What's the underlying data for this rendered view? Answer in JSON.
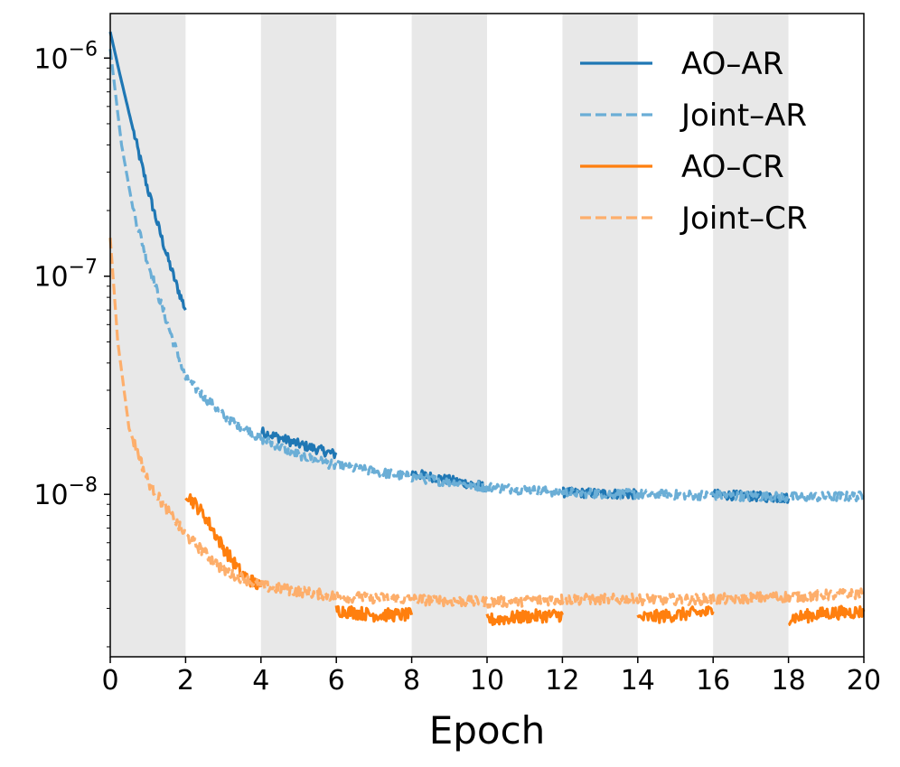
{
  "chart_data": {
    "type": "line",
    "title": "",
    "xlabel": "Epoch",
    "ylabel": "",
    "yscale": "log",
    "xlim": [
      0,
      20
    ],
    "ylim": [
      1.8e-09,
      1.6e-06
    ],
    "x_ticks": [
      0,
      2,
      4,
      6,
      8,
      10,
      12,
      14,
      16,
      18,
      20
    ],
    "x_tick_labels": [
      "0",
      "2",
      "4",
      "6",
      "8",
      "10",
      "12",
      "14",
      "16",
      "18",
      "20"
    ],
    "y_ticks": [
      {
        "value": 1e-06,
        "base": "10",
        "exponent": "−6"
      },
      {
        "value": 1e-07,
        "base": "10",
        "exponent": "−7"
      },
      {
        "value": 1e-08,
        "base": "10",
        "exponent": "−8"
      }
    ],
    "shaded_x_intervals": [
      [
        0,
        2
      ],
      [
        4,
        6
      ],
      [
        8,
        10
      ],
      [
        12,
        14
      ],
      [
        16,
        18
      ]
    ],
    "shade_color": "#e8e8e8",
    "legend_position": "top-right",
    "series": [
      {
        "name": "AO–AR",
        "color": "#1f77b4",
        "style": "solid",
        "noise": 0.022,
        "segments": [
          [
            [
              0,
              1.32e-06
            ],
            [
              0.25,
              8.5e-07
            ],
            [
              0.5,
              5.6e-07
            ],
            [
              0.75,
              3.7e-07
            ],
            [
              1.0,
              2.5e-07
            ],
            [
              1.25,
              1.75e-07
            ],
            [
              1.5,
              1.25e-07
            ],
            [
              1.75,
              9.2e-08
            ],
            [
              2.0,
              7e-08
            ]
          ],
          [
            [
              4,
              1.94e-08
            ],
            [
              5,
              1.7e-08
            ],
            [
              6,
              1.52e-08
            ]
          ],
          [
            [
              8,
              1.25e-08
            ],
            [
              10,
              1.08e-08
            ]
          ],
          [
            [
              12,
              1.02e-08
            ],
            [
              14,
              1e-08
            ]
          ],
          [
            [
              16,
              1e-08
            ],
            [
              18,
              9.6e-09
            ]
          ]
        ]
      },
      {
        "name": "Joint–AR",
        "color": "#6baed6",
        "style": "dashed",
        "noise": 0.022,
        "segments": [
          [
            [
              0,
              1.1e-06
            ],
            [
              0.3,
              4e-07
            ],
            [
              0.6,
              2.05e-07
            ],
            [
              1.0,
              1.15e-07
            ],
            [
              1.5,
              6.2e-08
            ],
            [
              2.0,
              3.4e-08
            ],
            [
              3.0,
              2.3e-08
            ],
            [
              4.0,
              1.8e-08
            ],
            [
              5.0,
              1.52e-08
            ],
            [
              6.0,
              1.35e-08
            ],
            [
              8.0,
              1.2e-08
            ],
            [
              10.0,
              1.08e-08
            ],
            [
              12.0,
              1.02e-08
            ],
            [
              14.0,
              1e-08
            ],
            [
              16.0,
              9.9e-09
            ],
            [
              18.0,
              9.7e-09
            ],
            [
              20.0,
              9.8e-09
            ]
          ]
        ]
      },
      {
        "name": "AO–CR",
        "color": "#ff7f0e",
        "style": "solid",
        "noise": 0.03,
        "segments": [
          [
            [
              2.0,
              1.02e-08
            ],
            [
              2.5,
              8e-09
            ],
            [
              3.0,
              5.7e-09
            ],
            [
              3.5,
              4.3e-09
            ],
            [
              4.0,
              3.75e-09
            ]
          ],
          [
            [
              6,
              2.95e-09
            ],
            [
              7,
              2.8e-09
            ],
            [
              8,
              2.8e-09
            ]
          ],
          [
            [
              10,
              2.65e-09
            ],
            [
              11,
              2.75e-09
            ],
            [
              12,
              2.8e-09
            ]
          ],
          [
            [
              14,
              2.7e-09
            ],
            [
              15,
              2.8e-09
            ],
            [
              16,
              2.9e-09
            ]
          ],
          [
            [
              18,
              2.7e-09
            ],
            [
              19,
              2.85e-09
            ],
            [
              20,
              2.9e-09
            ]
          ]
        ]
      },
      {
        "name": "Joint–CR",
        "color": "#fdae6b",
        "style": "dashed",
        "noise": 0.025,
        "segments": [
          [
            [
              0,
              1.5e-07
            ],
            [
              0.2,
              5e-08
            ],
            [
              0.5,
              2e-08
            ],
            [
              1.0,
              1.15e-08
            ],
            [
              1.5,
              8.5e-09
            ],
            [
              2.0,
              6.5e-09
            ],
            [
              3.0,
              4.5e-09
            ],
            [
              4.0,
              3.8e-09
            ],
            [
              6.0,
              3.4e-09
            ],
            [
              8.0,
              3.3e-09
            ],
            [
              10.0,
              3.2e-09
            ],
            [
              12.0,
              3.3e-09
            ],
            [
              14.0,
              3.3e-09
            ],
            [
              16.0,
              3.3e-09
            ],
            [
              18.0,
              3.4e-09
            ],
            [
              20.0,
              3.5e-09
            ]
          ]
        ]
      }
    ]
  }
}
